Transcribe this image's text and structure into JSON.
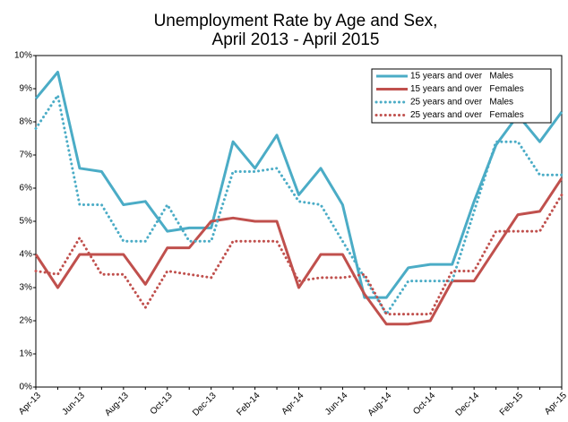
{
  "chart_data": {
    "type": "line",
    "title": "Unemployment Rate by Age and Sex,",
    "subtitle": "April 2013 - April 2015",
    "categories": [
      "Apr-13",
      null,
      "Jun-13",
      null,
      "Aug-13",
      null,
      "Oct-13",
      null,
      "Dec-13",
      null,
      "Feb-14",
      null,
      "Apr-14",
      null,
      "Jun-14",
      null,
      "Aug-14",
      null,
      "Oct-14",
      null,
      "Dec-14",
      null,
      "Feb-15",
      null,
      "Apr-15"
    ],
    "series": [
      {
        "name": "15 years and over   Males",
        "color": "#4bacc6",
        "style": "solid",
        "values": [
          8.7,
          9.5,
          6.6,
          6.5,
          5.5,
          5.6,
          4.7,
          4.8,
          4.8,
          7.4,
          6.6,
          7.6,
          5.8,
          6.6,
          5.5,
          2.7,
          2.7,
          3.6,
          3.7,
          3.7,
          5.6,
          7.3,
          8.2,
          7.4,
          8.3
        ]
      },
      {
        "name": "15 years and over   Females",
        "color": "#c0504d",
        "style": "solid",
        "values": [
          4.0,
          3.0,
          4.0,
          4.0,
          4.0,
          3.1,
          4.2,
          4.2,
          5.0,
          5.1,
          5.0,
          5.0,
          3.0,
          4.0,
          4.0,
          2.8,
          1.9,
          1.9,
          2.0,
          3.2,
          3.2,
          4.2,
          5.2,
          5.3,
          6.3
        ]
      },
      {
        "name": "25 years and over   Males",
        "color": "#4bacc6",
        "style": "dotted",
        "values": [
          7.8,
          8.8,
          5.5,
          5.5,
          4.4,
          4.4,
          5.5,
          4.4,
          4.4,
          6.5,
          6.5,
          6.6,
          5.6,
          5.5,
          4.4,
          3.3,
          2.2,
          3.2,
          3.2,
          3.2,
          5.3,
          7.4,
          7.4,
          6.4,
          6.4
        ]
      },
      {
        "name": "25 years and over   Females",
        "color": "#c0504d",
        "style": "dotted",
        "values": [
          3.5,
          3.4,
          4.5,
          3.4,
          3.4,
          2.4,
          3.5,
          3.4,
          3.3,
          4.4,
          4.4,
          4.4,
          3.2,
          3.3,
          3.3,
          3.4,
          2.2,
          2.2,
          2.2,
          3.5,
          3.5,
          4.7,
          4.7,
          4.7,
          5.8
        ]
      }
    ],
    "ylim": [
      0,
      10
    ],
    "yticks": [
      {
        "value": 0,
        "label": "0%"
      },
      {
        "value": 1,
        "label": "1%"
      },
      {
        "value": 2,
        "label": "2%"
      },
      {
        "value": 3,
        "label": "3%"
      },
      {
        "value": 4,
        "label": "4%"
      },
      {
        "value": 5,
        "label": "5%"
      },
      {
        "value": 6,
        "label": "6%"
      },
      {
        "value": 7,
        "label": "7%"
      },
      {
        "value": 8,
        "label": "8%"
      },
      {
        "value": 9,
        "label": "9%"
      },
      {
        "value": 10,
        "label": "10%"
      }
    ],
    "legend": "upper right",
    "grid": false
  }
}
